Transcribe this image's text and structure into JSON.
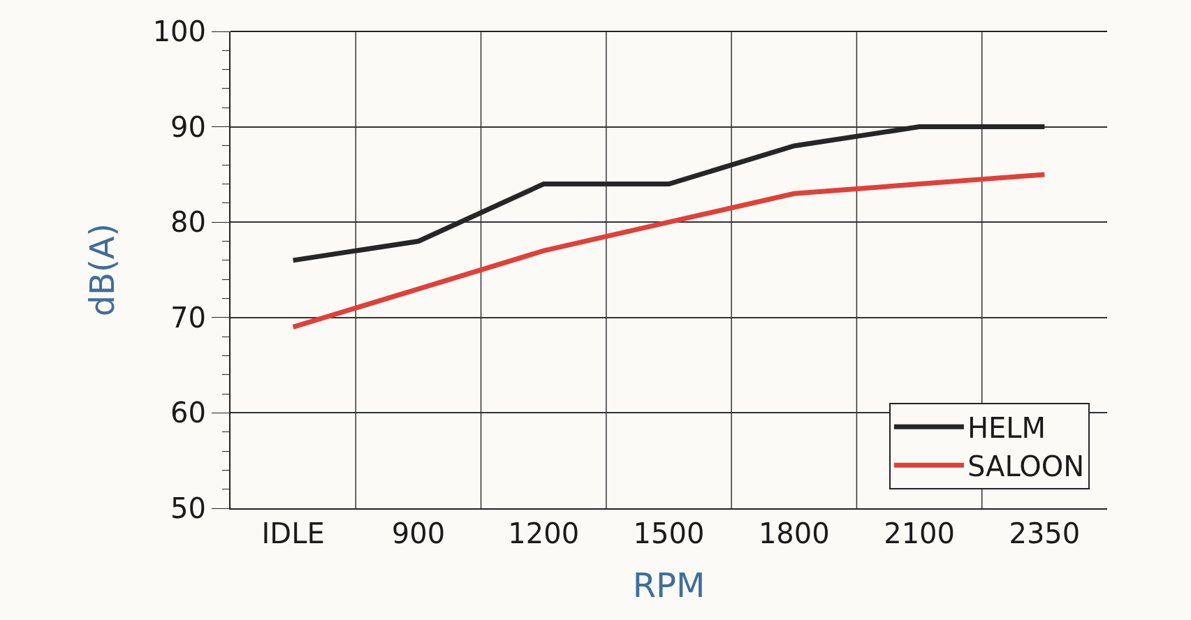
{
  "chart_data": {
    "type": "line",
    "xlabel": "RPM",
    "ylabel": "dB(A)",
    "categories": [
      "IDLE",
      "900",
      "1200",
      "1500",
      "1800",
      "2100",
      "2350"
    ],
    "series": [
      {
        "name": "HELM",
        "color": "#262626",
        "values": [
          76,
          78,
          84,
          84,
          88,
          90,
          90
        ]
      },
      {
        "name": "SALOON",
        "color": "#e0403a",
        "values": [
          69,
          73,
          77,
          80,
          83,
          84,
          85
        ]
      }
    ],
    "ylim": [
      50,
      100
    ],
    "yticks": [
      50,
      60,
      70,
      80,
      90,
      100
    ],
    "grid": true,
    "legend": "bottom right",
    "marker": "none",
    "line_style": "solid"
  }
}
